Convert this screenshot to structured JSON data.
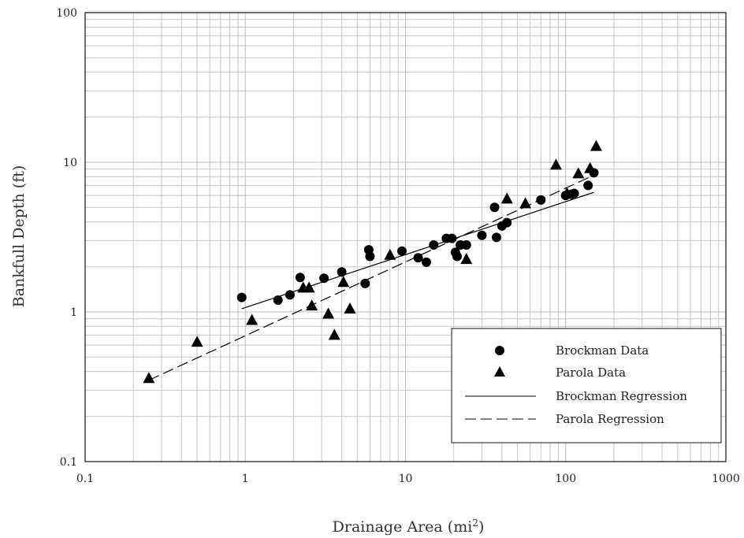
{
  "chart_data": {
    "type": "scatter",
    "title": "",
    "xlabel": "Drainage Area (mi",
    "xlabel_sup": "2",
    "xlabel_close": ")",
    "ylabel": "Bankfull Depth (ft)",
    "x_scale": "log",
    "y_scale": "log",
    "xlim": [
      0.1,
      1000
    ],
    "ylim": [
      0.1,
      100
    ],
    "x_ticks": [
      0.1,
      1,
      10,
      100,
      1000
    ],
    "y_ticks": [
      0.1,
      1,
      10,
      100
    ],
    "x_tick_labels": [
      "0.1",
      "1",
      "10",
      "100",
      "1000"
    ],
    "y_tick_labels": [
      "0.1",
      "1",
      "10",
      "100"
    ],
    "grid": true,
    "legend_position": "bottom-right",
    "series": [
      {
        "name": "Brockman Data",
        "kind": "points",
        "marker": "circle",
        "points": [
          [
            0.95,
            1.25
          ],
          [
            1.6,
            1.2
          ],
          [
            1.9,
            1.3
          ],
          [
            2.2,
            1.7
          ],
          [
            3.1,
            1.68
          ],
          [
            4.0,
            1.85
          ],
          [
            5.6,
            1.55
          ],
          [
            5.9,
            2.6
          ],
          [
            6.0,
            2.35
          ],
          [
            9.5,
            2.55
          ],
          [
            12.0,
            2.3
          ],
          [
            13.5,
            2.15
          ],
          [
            15.0,
            2.8
          ],
          [
            18.0,
            3.1
          ],
          [
            19.5,
            3.1
          ],
          [
            20.5,
            2.5
          ],
          [
            21.0,
            2.35
          ],
          [
            22.0,
            2.8
          ],
          [
            24.0,
            2.8
          ],
          [
            30.0,
            3.25
          ],
          [
            36.0,
            5.0
          ],
          [
            37.0,
            3.15
          ],
          [
            40.0,
            3.75
          ],
          [
            43.0,
            3.95
          ],
          [
            70.0,
            5.6
          ],
          [
            100.0,
            6.0
          ],
          [
            108.0,
            6.1
          ],
          [
            113.0,
            6.2
          ],
          [
            138.0,
            7.0
          ],
          [
            150.0,
            8.5
          ]
        ]
      },
      {
        "name": "Parola Data",
        "kind": "points",
        "marker": "triangle",
        "points": [
          [
            0.25,
            0.36
          ],
          [
            0.5,
            0.63
          ],
          [
            1.1,
            0.88
          ],
          [
            2.3,
            1.45
          ],
          [
            2.5,
            1.45
          ],
          [
            2.6,
            1.1
          ],
          [
            3.3,
            0.97
          ],
          [
            3.6,
            0.7
          ],
          [
            4.1,
            1.58
          ],
          [
            4.5,
            1.05
          ],
          [
            8.0,
            2.4
          ],
          [
            24.0,
            2.25
          ],
          [
            43.0,
            5.7
          ],
          [
            56.0,
            5.3
          ],
          [
            87.0,
            9.6
          ],
          [
            102.0,
            6.2
          ],
          [
            120.0,
            8.4
          ],
          [
            142.0,
            9.1
          ],
          [
            155.0,
            12.8
          ]
        ]
      },
      {
        "name": "Brockman Regression",
        "kind": "line",
        "dash": "solid",
        "points": [
          [
            0.95,
            1.05
          ],
          [
            150.0,
            6.3
          ]
        ]
      },
      {
        "name": "Parola Regression",
        "kind": "line",
        "dash": "dashed",
        "points": [
          [
            0.25,
            0.35
          ],
          [
            150.0,
            8.2
          ]
        ]
      }
    ]
  }
}
